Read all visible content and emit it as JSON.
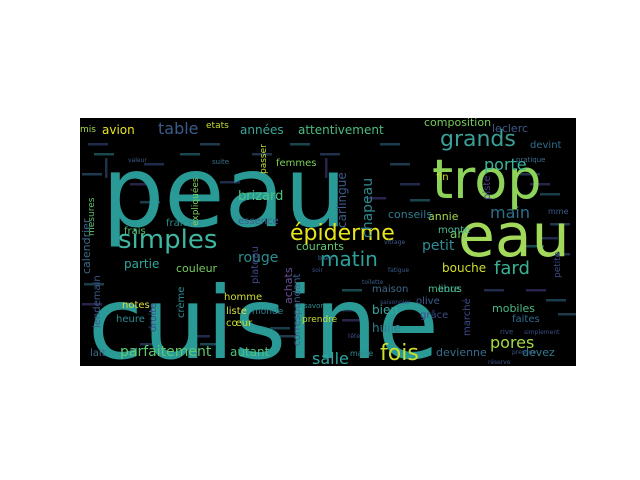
{
  "wordcloud": {
    "background": "#000000",
    "words": [
      {
        "text": "peau",
        "color": "#2a9a97"
      },
      {
        "text": "cuisine",
        "color": "#2a9a97"
      },
      {
        "text": "trop",
        "color": "#8dd35a"
      },
      {
        "text": "eau",
        "color": "#a3d95b"
      },
      {
        "text": "simples",
        "color": "#3fb6a2"
      },
      {
        "text": "épiderme",
        "color": "#e8e51a"
      },
      {
        "text": "grands",
        "color": "#3a9f95"
      },
      {
        "text": "main",
        "color": "#2e6f8c"
      },
      {
        "text": "matin",
        "color": "#2aa19b"
      },
      {
        "text": "fois",
        "color": "#c8e02a"
      },
      {
        "text": "fard",
        "color": "#39b395"
      },
      {
        "text": "parfaitement",
        "color": "#5ec96e"
      },
      {
        "text": "pores",
        "color": "#a5db43"
      },
      {
        "text": "salle",
        "color": "#2ea69f"
      },
      {
        "text": "table",
        "color": "#3b5c8b"
      },
      {
        "text": "porte",
        "color": "#3ab59c"
      },
      {
        "text": "chapeau",
        "color": "#2d8a91"
      },
      {
        "text": "rouge",
        "color": "#2c8d8e"
      },
      {
        "text": "partie",
        "color": "#30a99b"
      },
      {
        "text": "petit",
        "color": "#2f8c95"
      },
      {
        "text": "bouche",
        "color": "#d2df2c"
      },
      {
        "text": "autant",
        "color": "#4cc37d"
      },
      {
        "text": "avion",
        "color": "#e6e223"
      },
      {
        "text": "attentivement",
        "color": "#4bbd81"
      },
      {
        "text": "années",
        "color": "#3ca79b"
      },
      {
        "text": "brizard",
        "color": "#4cc383"
      },
      {
        "text": "carlingue",
        "color": "#3b5b8b"
      },
      {
        "text": "calendrier",
        "color": "#3b6a8c"
      },
      {
        "text": "lendemain",
        "color": "#3c5a8a"
      },
      {
        "text": "bien",
        "color": "#3aa7a0"
      },
      {
        "text": "huile",
        "color": "#2e7d8e"
      },
      {
        "text": "annie",
        "color": "#a7d750"
      },
      {
        "text": "art",
        "color": "#75cc61"
      },
      {
        "text": "monte",
        "color": "#4fb99a"
      },
      {
        "text": "fin",
        "color": "#c8e02f"
      },
      {
        "text": "piste",
        "color": "#4b3f87"
      },
      {
        "text": "composition",
        "color": "#77cd5b"
      },
      {
        "text": "leclerc",
        "color": "#3e5987"
      },
      {
        "text": "devint",
        "color": "#2f6f8e"
      },
      {
        "text": "conseils",
        "color": "#2e7c8f"
      },
      {
        "text": "courants",
        "color": "#62c871"
      },
      {
        "text": "achats",
        "color": "#6a4f95"
      },
      {
        "text": "couleur",
        "color": "#76ce5e"
      },
      {
        "text": "plateau",
        "color": "#3f4a8a"
      },
      {
        "text": "libre",
        "color": "#2f8b94"
      },
      {
        "text": "marché",
        "color": "#3c4a88"
      },
      {
        "text": "mobiles",
        "color": "#4aba8a"
      },
      {
        "text": "faites",
        "color": "#2e6c8e"
      },
      {
        "text": "devez",
        "color": "#2f7e8e"
      },
      {
        "text": "devienne",
        "color": "#3a6c8c"
      },
      {
        "text": "grâce",
        "color": "#3b4c88"
      },
      {
        "text": "menus",
        "color": "#4fbd8a"
      },
      {
        "text": "maison",
        "color": "#3f6a8c"
      },
      {
        "text": "olive",
        "color": "#3b5e8c"
      },
      {
        "text": "homme",
        "color": "#d1de35"
      },
      {
        "text": "liste",
        "color": "#d3e03b"
      },
      {
        "text": "cœur",
        "color": "#c8de2a"
      },
      {
        "text": "notes",
        "color": "#d6e03a"
      },
      {
        "text": "heure",
        "color": "#2e8c90"
      },
      {
        "text": "lait",
        "color": "#3c6d8c"
      },
      {
        "text": "droite",
        "color": "#3b4f88"
      },
      {
        "text": "frais",
        "color": "#5ac36f"
      },
      {
        "text": "fraîche",
        "color": "#2d8c8e"
      },
      {
        "text": "essence",
        "color": "#3f5e8b"
      },
      {
        "text": "femmes",
        "color": "#7cd05a"
      },
      {
        "text": "passer",
        "color": "#c7de36"
      },
      {
        "text": "etats",
        "color": "#c7de2d"
      },
      {
        "text": "expliquées",
        "color": "#7ccf5d"
      },
      {
        "text": "crème",
        "color": "#2f8a8f"
      },
      {
        "text": "correspondant",
        "color": "#3d5e8b"
      },
      {
        "text": "prendre",
        "color": "#c7dd35"
      },
      {
        "text": "mis",
        "color": "#a9d94c"
      },
      {
        "text": "mesures",
        "color": "#5fc172"
      },
      {
        "text": "monde",
        "color": "#2e7f8f"
      },
      {
        "text": "suite",
        "color": "#3b6f8c"
      },
      {
        "text": "pratique",
        "color": "#3c6a8b"
      },
      {
        "text": "simplement",
        "color": "#3b4e88"
      },
      {
        "text": "presque",
        "color": "#3a5588"
      },
      {
        "text": "réserve",
        "color": "#3c4f88"
      },
      {
        "text": "mme",
        "color": "#3a5b8b"
      },
      {
        "text": "petite",
        "color": "#3c4c88"
      },
      {
        "text": "rive",
        "color": "#3b4d89"
      },
      {
        "text": "vitrage",
        "color": "#3c5d8b"
      },
      {
        "text": "fatigue",
        "color": "#3b5b8a"
      },
      {
        "text": "tête",
        "color": "#3b4e88"
      },
      {
        "text": "marie",
        "color": "#2e8a8f"
      },
      {
        "text": "savon",
        "color": "#2f8c90"
      },
      {
        "text": "toilette",
        "color": "#3c5a8a"
      },
      {
        "text": "soir",
        "color": "#3b4e88"
      },
      {
        "text": "saisonnier",
        "color": "#3a5088"
      },
      {
        "text": "blanc",
        "color": "#3b6a8c"
      },
      {
        "text": "valeur",
        "color": "#3b5c8a"
      }
    ]
  }
}
